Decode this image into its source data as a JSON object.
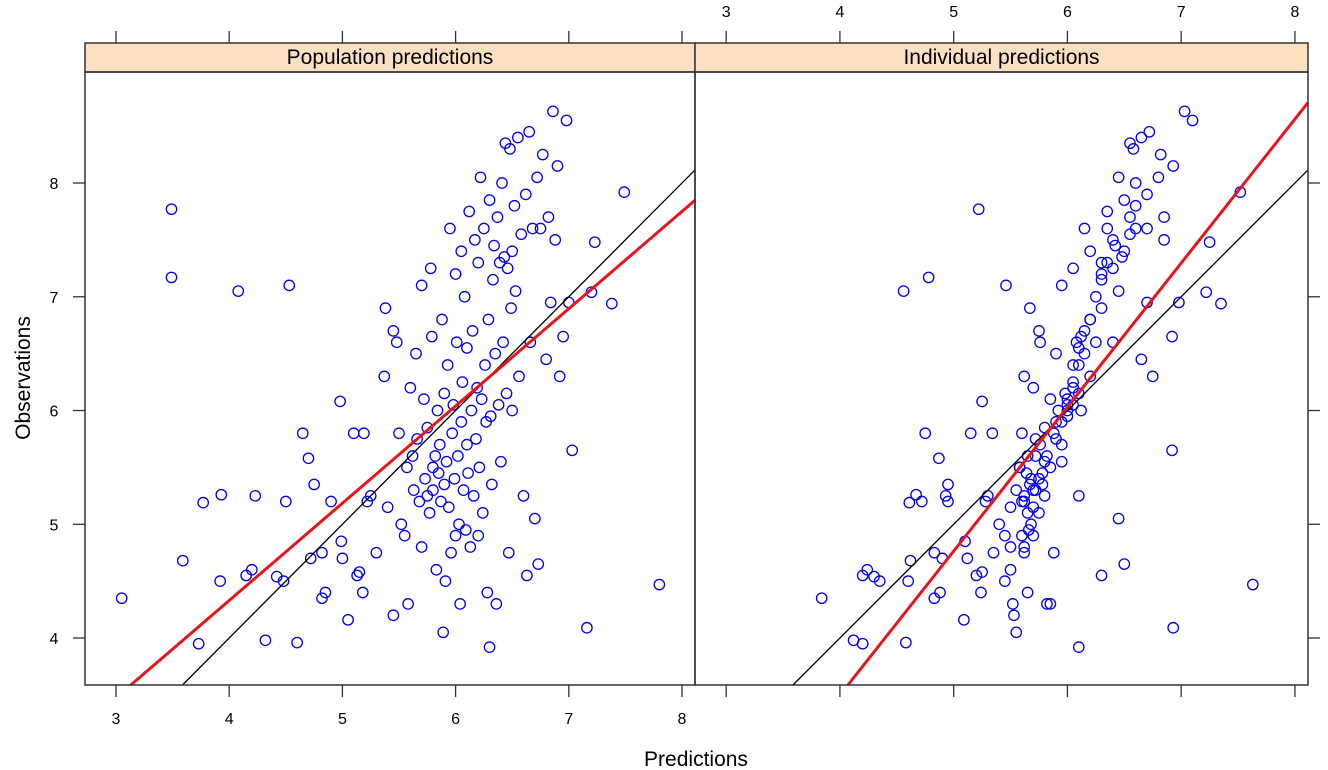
{
  "chart_data": {
    "type": "scatter",
    "xlabel": "Predictions",
    "ylabel": "Observations",
    "xlim": [
      2.726,
      8.115
    ],
    "ylim": [
      3.587,
      8.976
    ],
    "xticks": [
      3,
      4,
      5,
      6,
      7,
      8
    ],
    "yticks": [
      4,
      5,
      6,
      7,
      8
    ],
    "grid": false,
    "point_color": "#0000ee",
    "identity_line_color": "#000000",
    "fit_line_color": "#e8141c",
    "strip_color": "#fde0c1",
    "panels": [
      {
        "title": "Population predictions",
        "x_field": 0,
        "fit": {
          "slope": 0.855,
          "intercept": 0.91
        },
        "identity": {
          "slope": 1,
          "intercept": 0
        }
      },
      {
        "title": "Individual predictions",
        "x_field": 1,
        "fit": {
          "slope": 1.266,
          "intercept": -1.566
        },
        "identity": {
          "slope": 1,
          "intercept": 0
        }
      }
    ],
    "point_fields": [
      "population_prediction",
      "individual_prediction",
      "observation"
    ],
    "points": [
      [
        3.05,
        3.84,
        4.35
      ],
      [
        3.49,
        5.22,
        7.77
      ],
      [
        3.49,
        4.78,
        7.17
      ],
      [
        3.59,
        4.62,
        4.68
      ],
      [
        3.73,
        4.2,
        3.95
      ],
      [
        3.77,
        4.61,
        5.19
      ],
      [
        3.92,
        4.35,
        4.5
      ],
      [
        3.93,
        4.67,
        5.26
      ],
      [
        4.08,
        4.56,
        7.05
      ],
      [
        4.15,
        4.2,
        4.55
      ],
      [
        4.2,
        4.24,
        4.6
      ],
      [
        4.23,
        4.93,
        5.25
      ],
      [
        4.32,
        4.12,
        3.98
      ],
      [
        4.42,
        4.3,
        4.54
      ],
      [
        4.48,
        4.6,
        4.5
      ],
      [
        4.5,
        4.72,
        5.2
      ],
      [
        4.53,
        5.46,
        7.1
      ],
      [
        4.6,
        4.58,
        3.96
      ],
      [
        4.65,
        4.75,
        5.8
      ],
      [
        4.7,
        4.87,
        5.58
      ],
      [
        4.72,
        4.9,
        4.7
      ],
      [
        4.75,
        4.95,
        5.35
      ],
      [
        4.82,
        4.83,
        4.75
      ],
      [
        4.82,
        4.83,
        4.35
      ],
      [
        4.85,
        4.88,
        4.4
      ],
      [
        4.9,
        4.95,
        5.2
      ],
      [
        4.98,
        5.25,
        6.08
      ],
      [
        4.99,
        5.1,
        4.85
      ],
      [
        5.05,
        5.09,
        4.16
      ],
      [
        5.0,
        5.12,
        4.7
      ],
      [
        5.1,
        5.15,
        5.8
      ],
      [
        5.13,
        5.2,
        4.55
      ],
      [
        5.15,
        5.25,
        4.58
      ],
      [
        5.18,
        5.24,
        4.4
      ],
      [
        5.19,
        5.34,
        5.8
      ],
      [
        5.22,
        5.28,
        5.2
      ],
      [
        5.25,
        5.3,
        5.25
      ],
      [
        5.3,
        5.35,
        4.75
      ],
      [
        5.37,
        5.62,
        6.3
      ],
      [
        5.38,
        5.67,
        6.9
      ],
      [
        5.4,
        5.5,
        5.15
      ],
      [
        5.45,
        5.53,
        4.2
      ],
      [
        5.45,
        5.75,
        6.7
      ],
      [
        5.48,
        5.76,
        6.6
      ],
      [
        5.5,
        5.6,
        5.8
      ],
      [
        5.52,
        5.4,
        5.0
      ],
      [
        5.55,
        5.45,
        4.9
      ],
      [
        5.57,
        5.58,
        5.5
      ],
      [
        5.58,
        5.52,
        4.3
      ],
      [
        5.6,
        5.7,
        6.2
      ],
      [
        5.62,
        5.65,
        5.6
      ],
      [
        5.63,
        5.55,
        5.3
      ],
      [
        5.65,
        5.9,
        6.5
      ],
      [
        5.66,
        5.72,
        5.75
      ],
      [
        5.68,
        5.62,
        5.2
      ],
      [
        5.7,
        5.5,
        4.8
      ],
      [
        5.7,
        5.95,
        7.1
      ],
      [
        5.72,
        5.85,
        6.1
      ],
      [
        5.73,
        5.68,
        5.4
      ],
      [
        5.75,
        5.62,
        5.25
      ],
      [
        5.75,
        5.8,
        5.85
      ],
      [
        5.77,
        5.65,
        5.1
      ],
      [
        5.78,
        6.05,
        7.25
      ],
      [
        5.79,
        6.12,
        6.65
      ],
      [
        5.8,
        5.58,
        5.5
      ],
      [
        5.8,
        5.7,
        5.3
      ],
      [
        5.82,
        5.72,
        5.6
      ],
      [
        5.83,
        5.5,
        4.6
      ],
      [
        5.84,
        5.92,
        6.0
      ],
      [
        5.85,
        5.64,
        5.45
      ],
      [
        5.86,
        5.76,
        5.7
      ],
      [
        5.87,
        5.6,
        5.2
      ],
      [
        5.88,
        6.2,
        6.8
      ],
      [
        5.89,
        5.55,
        4.05
      ],
      [
        5.9,
        5.98,
        6.15
      ],
      [
        5.9,
        5.67,
        5.35
      ],
      [
        5.91,
        5.45,
        4.5
      ],
      [
        5.92,
        5.8,
        5.55
      ],
      [
        5.93,
        6.05,
        6.4
      ],
      [
        5.94,
        5.7,
        5.15
      ],
      [
        5.95,
        6.15,
        7.6
      ],
      [
        5.96,
        5.62,
        4.75
      ],
      [
        5.97,
        5.88,
        5.8
      ],
      [
        5.98,
        6.0,
        6.05
      ],
      [
        5.99,
        5.75,
        5.4
      ],
      [
        6.0,
        6.3,
        7.2
      ],
      [
        6.0,
        5.6,
        4.9
      ],
      [
        6.01,
        6.08,
        6.6
      ],
      [
        6.02,
        5.82,
        5.6
      ],
      [
        6.03,
        5.68,
        5.0
      ],
      [
        6.04,
        5.85,
        4.3
      ],
      [
        6.05,
        6.2,
        7.4
      ],
      [
        6.05,
        5.9,
        5.9
      ],
      [
        6.06,
        6.05,
        6.25
      ],
      [
        6.07,
        5.72,
        5.3
      ],
      [
        6.08,
        6.25,
        7.0
      ],
      [
        6.09,
        5.66,
        4.95
      ],
      [
        6.1,
        5.95,
        5.7
      ],
      [
        6.1,
        6.1,
        6.55
      ],
      [
        6.11,
        5.78,
        5.45
      ],
      [
        6.12,
        6.35,
        7.75
      ],
      [
        6.13,
        5.62,
        4.8
      ],
      [
        6.14,
        6.0,
        6.0
      ],
      [
        6.15,
        6.15,
        6.7
      ],
      [
        6.16,
        5.8,
        5.25
      ],
      [
        6.17,
        6.4,
        7.5
      ],
      [
        6.18,
        5.9,
        5.75
      ],
      [
        6.19,
        6.05,
        6.2
      ],
      [
        6.2,
        5.7,
        4.9
      ],
      [
        6.2,
        6.3,
        7.3
      ],
      [
        6.21,
        5.85,
        5.5
      ],
      [
        6.22,
        6.45,
        8.05
      ],
      [
        6.23,
        6.0,
        6.1
      ],
      [
        6.24,
        5.75,
        5.1
      ],
      [
        6.25,
        6.35,
        7.6
      ],
      [
        6.26,
        6.1,
        6.4
      ],
      [
        6.27,
        5.95,
        5.9
      ],
      [
        6.28,
        5.65,
        4.4
      ],
      [
        6.29,
        6.2,
        6.8
      ],
      [
        6.3,
        6.5,
        7.85
      ],
      [
        6.3,
        6.1,
        3.92
      ],
      [
        6.31,
        6.0,
        5.95
      ],
      [
        6.32,
        5.78,
        5.35
      ],
      [
        6.33,
        6.3,
        7.15
      ],
      [
        6.34,
        6.42,
        7.45
      ],
      [
        6.35,
        6.15,
        6.5
      ],
      [
        6.36,
        5.82,
        4.3
      ],
      [
        6.37,
        6.55,
        7.7
      ],
      [
        6.38,
        6.05,
        6.05
      ],
      [
        6.39,
        6.35,
        7.3
      ],
      [
        6.4,
        5.95,
        5.55
      ],
      [
        6.41,
        6.6,
        8.0
      ],
      [
        6.42,
        6.25,
        6.6
      ],
      [
        6.43,
        6.48,
        7.35
      ],
      [
        6.44,
        6.55,
        8.35
      ],
      [
        6.45,
        6.1,
        6.15
      ],
      [
        6.46,
        6.4,
        7.25
      ],
      [
        6.47,
        5.88,
        4.75
      ],
      [
        6.48,
        6.58,
        8.3
      ],
      [
        6.49,
        6.3,
        6.9
      ],
      [
        6.5,
        6.5,
        7.4
      ],
      [
        6.5,
        6.12,
        6.0
      ],
      [
        6.52,
        6.6,
        7.8
      ],
      [
        6.53,
        6.45,
        7.05
      ],
      [
        6.55,
        6.65,
        8.4
      ],
      [
        6.56,
        6.2,
        6.3
      ],
      [
        6.58,
        6.55,
        7.55
      ],
      [
        6.6,
        6.1,
        5.25
      ],
      [
        6.62,
        6.7,
        7.9
      ],
      [
        6.63,
        6.3,
        4.55
      ],
      [
        6.65,
        6.72,
        8.45
      ],
      [
        6.66,
        6.4,
        6.6
      ],
      [
        6.68,
        6.6,
        7.6
      ],
      [
        6.7,
        6.45,
        5.05
      ],
      [
        6.72,
        6.8,
        8.05
      ],
      [
        6.73,
        6.5,
        4.65
      ],
      [
        6.75,
        6.7,
        7.6
      ],
      [
        6.77,
        6.82,
        8.25
      ],
      [
        6.8,
        6.65,
        6.45
      ],
      [
        6.82,
        6.85,
        7.7
      ],
      [
        6.84,
        6.7,
        6.95
      ],
      [
        6.86,
        7.03,
        8.63
      ],
      [
        6.88,
        6.85,
        7.5
      ],
      [
        6.9,
        6.93,
        8.15
      ],
      [
        6.92,
        6.75,
        6.3
      ],
      [
        6.95,
        6.92,
        6.65
      ],
      [
        6.98,
        7.1,
        8.55
      ],
      [
        7.0,
        6.98,
        6.95
      ],
      [
        7.03,
        6.92,
        5.65
      ],
      [
        7.16,
        6.93,
        4.09
      ],
      [
        7.2,
        7.22,
        7.04
      ],
      [
        7.23,
        7.25,
        7.48
      ],
      [
        7.38,
        7.35,
        6.94
      ],
      [
        7.49,
        7.52,
        7.92
      ],
      [
        7.8,
        7.63,
        4.47
      ]
    ]
  }
}
